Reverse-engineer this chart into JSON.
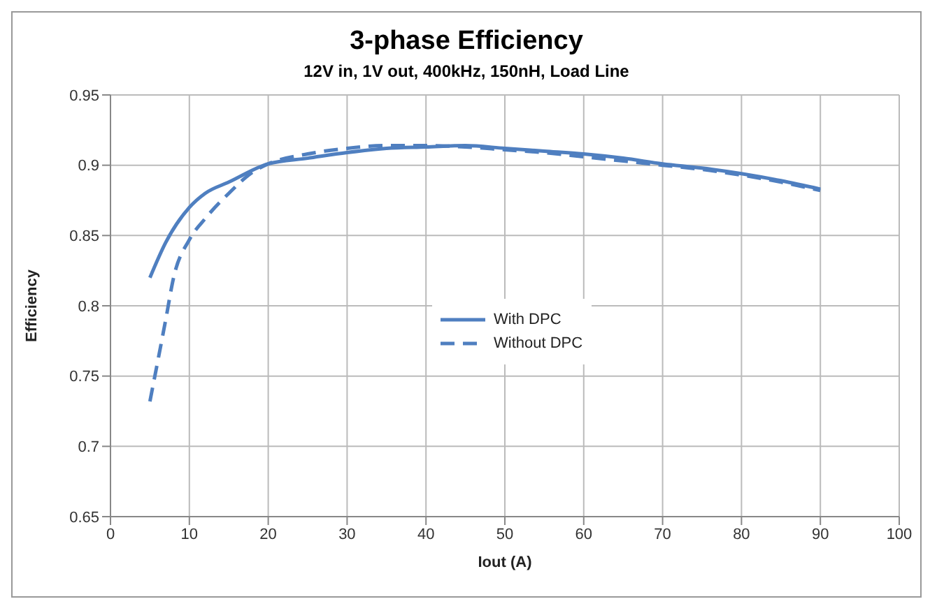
{
  "chart_data": {
    "type": "line",
    "title": "3-phase Efficiency",
    "subtitle": "12V in, 1V out, 400kHz, 150nH, Load Line",
    "xlabel": "Iout (A)",
    "ylabel": "Efficiency",
    "xlim": [
      0,
      100
    ],
    "xticks": [
      0,
      10,
      20,
      30,
      40,
      50,
      60,
      70,
      80,
      90,
      100
    ],
    "ylim": [
      0.65,
      0.95
    ],
    "yticks": [
      0.65,
      0.7,
      0.75,
      0.8,
      0.85,
      0.9,
      0.95
    ],
    "grid": true,
    "legend": "center",
    "marker": "none",
    "series": [
      {
        "name": "With DPC",
        "color": "#4f7fc0",
        "line_style": "solid",
        "x": [
          5,
          7,
          10,
          12,
          15,
          20,
          25,
          30,
          35,
          40,
          45,
          50,
          55,
          60,
          65,
          70,
          75,
          80,
          85,
          90
        ],
        "values": [
          0.82,
          0.845,
          0.87,
          0.88,
          0.888,
          0.901,
          0.905,
          0.909,
          0.912,
          0.913,
          0.914,
          0.912,
          0.91,
          0.908,
          0.905,
          0.901,
          0.898,
          0.894,
          0.889,
          0.883
        ]
      },
      {
        "name": "Without DPC",
        "color": "#4f7fc0",
        "line_style": "dashed",
        "x": [
          5,
          7,
          8,
          10,
          12,
          15,
          18,
          20,
          25,
          30,
          35,
          40,
          45,
          50,
          55,
          60,
          65,
          70,
          75,
          80,
          85,
          90
        ],
        "values": [
          0.732,
          0.79,
          0.82,
          0.847,
          0.862,
          0.88,
          0.895,
          0.901,
          0.908,
          0.912,
          0.914,
          0.914,
          0.913,
          0.911,
          0.909,
          0.906,
          0.903,
          0.9,
          0.897,
          0.893,
          0.888,
          0.882
        ]
      }
    ]
  }
}
